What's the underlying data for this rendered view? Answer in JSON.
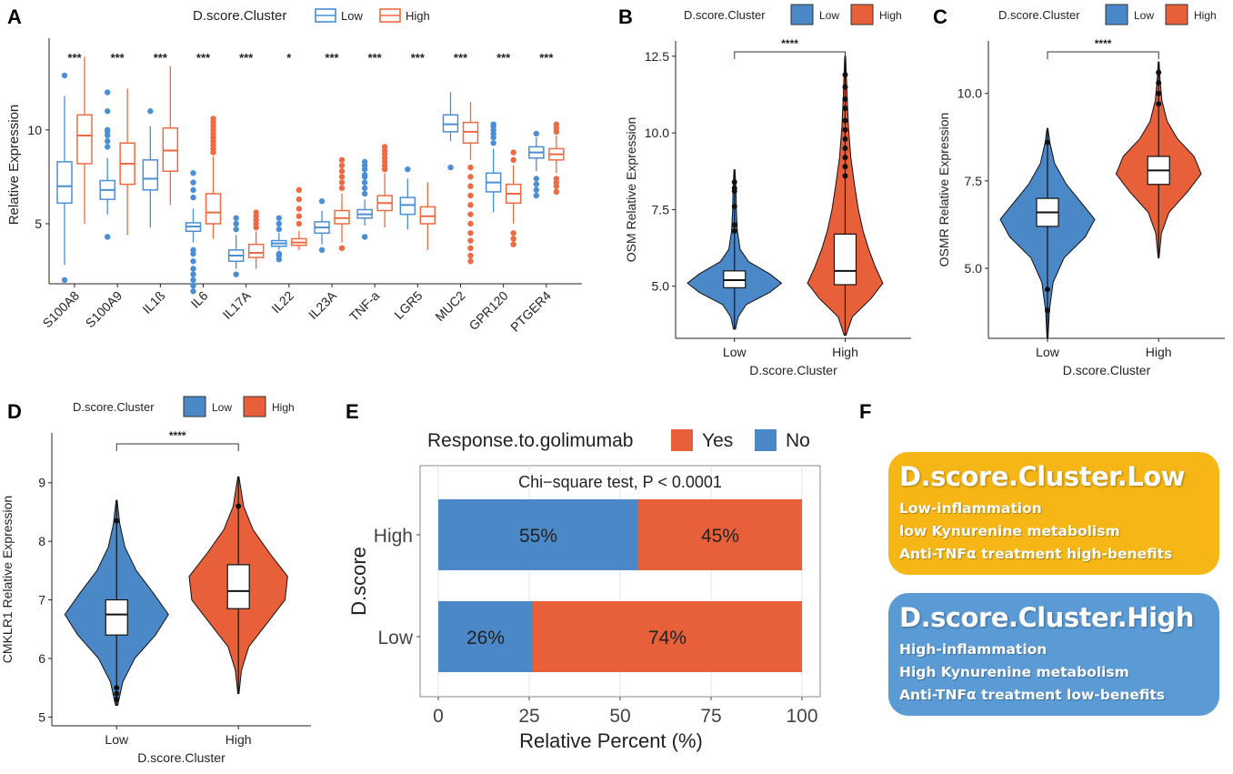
{
  "colors": {
    "low": "#4a8ed4",
    "high": "#ee6a42",
    "low_fill": "#4a88c8",
    "high_fill": "#e8603a",
    "box_low": "#f5b616",
    "box_high": "#5b9bd5"
  },
  "chart_data": [
    {
      "id": "A",
      "type": "boxplot",
      "panel_label": "A",
      "legend_title": "D.score.Cluster",
      "legend_items": [
        "Low",
        "High"
      ],
      "ylabel": "Relative Expression",
      "yticks": [
        5,
        10
      ],
      "ylim": [
        1.8,
        14.5
      ],
      "categories": [
        "S100A8",
        "S100A9",
        "IL1ß",
        "IL6",
        "IL17A",
        "IL22",
        "IL23A",
        "TNF-a",
        "LGR5",
        "MUC2",
        "GPR120",
        "PTGER4"
      ],
      "significance": [
        "***",
        "***",
        "***",
        "***",
        "***",
        "*",
        "***",
        "***",
        "***",
        "***",
        "***",
        "***"
      ],
      "series": [
        {
          "name": "Low",
          "boxes": [
            {
              "min": 2.8,
              "q1": 6.1,
              "med": 7.0,
              "q3": 8.3,
              "max": 11.8,
              "out": [
                2.0,
                12.9
              ]
            },
            {
              "min": 5.5,
              "q1": 6.3,
              "med": 6.8,
              "q3": 7.3,
              "max": 8.5,
              "out": [
                4.3,
                9.1,
                9.4,
                9.7,
                9.9,
                10.0,
                11.0,
                12.0
              ]
            },
            {
              "min": 4.8,
              "q1": 6.8,
              "med": 7.4,
              "q3": 8.4,
              "max": 10.2,
              "out": [
                11.0
              ]
            },
            {
              "min": 4.0,
              "q1": 4.6,
              "med": 4.85,
              "q3": 5.05,
              "max": 5.8,
              "out": [
                1.4,
                1.7,
                2.0,
                2.3,
                2.6,
                3.0,
                3.4,
                3.6,
                6.4,
                6.8,
                7.2,
                7.7
              ]
            },
            {
              "min": 2.6,
              "q1": 3.0,
              "med": 3.3,
              "q3": 3.6,
              "max": 4.4,
              "out": [
                2.3,
                4.7,
                5.0,
                5.3
              ]
            },
            {
              "min": 3.6,
              "q1": 3.8,
              "med": 3.95,
              "q3": 4.1,
              "max": 4.5,
              "out": [
                3.1,
                3.3,
                3.4,
                4.7,
                5.0,
                5.3
              ]
            },
            {
              "min": 3.9,
              "q1": 4.5,
              "med": 4.8,
              "q3": 5.1,
              "max": 5.7,
              "out": [
                3.6,
                6.2
              ]
            },
            {
              "min": 4.9,
              "q1": 5.3,
              "med": 5.5,
              "q3": 5.75,
              "max": 6.3,
              "out": [
                4.3,
                6.6,
                6.9,
                7.2,
                7.5,
                7.6,
                7.9,
                8.1,
                8.3
              ]
            },
            {
              "min": 4.7,
              "q1": 5.5,
              "med": 6.0,
              "q3": 6.4,
              "max": 7.4,
              "out": [
                7.9
              ]
            },
            {
              "min": 9.4,
              "q1": 9.9,
              "med": 10.3,
              "q3": 10.8,
              "max": 12.0,
              "out": [
                8.0
              ]
            },
            {
              "min": 5.6,
              "q1": 6.7,
              "med": 7.2,
              "q3": 7.7,
              "max": 9.0,
              "out": [
                9.3,
                9.6,
                9.8,
                10.0,
                10.2,
                10.3
              ]
            },
            {
              "min": 7.8,
              "q1": 8.5,
              "med": 8.8,
              "q3": 9.1,
              "max": 9.6,
              "out": [
                6.5,
                6.8,
                7.1,
                7.4,
                9.8
              ]
            }
          ]
        },
        {
          "name": "High",
          "boxes": [
            {
              "min": 5.0,
              "q1": 8.2,
              "med": 9.7,
              "q3": 10.8,
              "max": 13.9,
              "out": []
            },
            {
              "min": 4.4,
              "q1": 7.1,
              "med": 8.2,
              "q3": 9.3,
              "max": 12.2,
              "out": []
            },
            {
              "min": 6.0,
              "q1": 7.8,
              "med": 8.9,
              "q3": 10.1,
              "max": 13.4,
              "out": []
            },
            {
              "min": 4.2,
              "q1": 5.0,
              "med": 5.6,
              "q3": 6.6,
              "max": 8.6,
              "out": [
                8.8,
                9.0,
                9.2,
                9.4,
                9.6,
                9.8,
                10.0,
                10.2,
                10.4,
                10.6
              ]
            },
            {
              "min": 2.6,
              "q1": 3.2,
              "med": 3.45,
              "q3": 3.9,
              "max": 4.6,
              "out": [
                4.8,
                5.0,
                5.2,
                5.4,
                5.6
              ]
            },
            {
              "min": 3.6,
              "q1": 3.85,
              "med": 4.0,
              "q3": 4.2,
              "max": 4.6,
              "out": [
                5.0,
                5.4,
                5.8,
                6.3,
                6.8
              ]
            },
            {
              "min": 4.0,
              "q1": 5.0,
              "med": 5.3,
              "q3": 5.7,
              "max": 6.6,
              "out": [
                3.7,
                6.9,
                7.2,
                7.5,
                7.8,
                8.1,
                8.4
              ]
            },
            {
              "min": 4.8,
              "q1": 5.7,
              "med": 6.1,
              "q3": 6.5,
              "max": 7.7,
              "out": [
                7.9,
                8.1,
                8.3,
                8.5,
                8.7,
                8.9,
                9.1
              ]
            },
            {
              "min": 3.6,
              "q1": 5.0,
              "med": 5.4,
              "q3": 5.9,
              "max": 7.2,
              "out": []
            },
            {
              "min": 8.4,
              "q1": 9.3,
              "med": 9.9,
              "q3": 10.4,
              "max": 11.5,
              "out": [
                3.0,
                3.3,
                3.7,
                4.1,
                4.5,
                5.0,
                5.5,
                6.0,
                6.5,
                7.0,
                7.5,
                8.0
              ]
            },
            {
              "min": 5.0,
              "q1": 6.1,
              "med": 6.6,
              "q3": 7.1,
              "max": 8.1,
              "out": [
                3.9,
                4.2,
                4.5,
                8.4,
                8.8
              ]
            },
            {
              "min": 7.7,
              "q1": 8.4,
              "med": 8.7,
              "q3": 9.0,
              "max": 9.7,
              "out": [
                6.7,
                7.0,
                7.2,
                7.4,
                9.9,
                10.1,
                10.3
              ]
            }
          ]
        }
      ]
    },
    {
      "id": "B",
      "type": "violin",
      "panel_label": "B",
      "legend_title": "D.score.Cluster",
      "legend_items": [
        "Low",
        "High"
      ],
      "ylabel": "OSM Relative Expression",
      "xlabel": "D.score.Cluster",
      "categories": [
        "Low",
        "High"
      ],
      "yticks": [
        5.0,
        7.5,
        10.0,
        12.5
      ],
      "ytick_labels": [
        "5.0",
        "7.5",
        "10.0",
        "12.5"
      ],
      "ylim": [
        3.3,
        13.0
      ],
      "significance": "****",
      "groups": [
        {
          "name": "Low",
          "min": 4.3,
          "q1": 4.95,
          "med": 5.2,
          "q3": 5.5,
          "max": 6.3,
          "vmin": 3.6,
          "vmax": 8.8,
          "out": [
            6.8,
            7.0,
            7.6,
            8.1,
            8.2,
            8.4
          ],
          "density": [
            [
              3.6,
              0.02
            ],
            [
              4.0,
              0.08
            ],
            [
              4.4,
              0.25
            ],
            [
              4.8,
              0.75
            ],
            [
              5.1,
              1.0
            ],
            [
              5.4,
              0.75
            ],
            [
              5.8,
              0.3
            ],
            [
              6.2,
              0.12
            ],
            [
              6.8,
              0.06
            ],
            [
              7.5,
              0.04
            ],
            [
              8.2,
              0.03
            ],
            [
              8.8,
              0.01
            ]
          ]
        },
        {
          "name": "High",
          "min": 4.3,
          "q1": 5.05,
          "med": 5.5,
          "q3": 6.7,
          "max": 8.3,
          "vmin": 3.4,
          "vmax": 12.5,
          "out": [
            8.6,
            8.9,
            9.2,
            9.5,
            9.8,
            10.1,
            10.4,
            10.8,
            11.1,
            11.5,
            11.9
          ],
          "density": [
            [
              3.4,
              0.02
            ],
            [
              4.0,
              0.15
            ],
            [
              4.6,
              0.55
            ],
            [
              5.1,
              0.8
            ],
            [
              5.6,
              0.65
            ],
            [
              6.2,
              0.5
            ],
            [
              6.8,
              0.38
            ],
            [
              7.5,
              0.28
            ],
            [
              8.3,
              0.2
            ],
            [
              9.2,
              0.12
            ],
            [
              10.2,
              0.07
            ],
            [
              11.2,
              0.04
            ],
            [
              12.5,
              0.01
            ]
          ]
        }
      ]
    },
    {
      "id": "C",
      "type": "violin",
      "panel_label": "C",
      "legend_title": "D.score.Cluster",
      "legend_items": [
        "Low",
        "High"
      ],
      "ylabel": "OSMR Relative Expression",
      "xlabel": "D.score.Cluster",
      "categories": [
        "Low",
        "High"
      ],
      "yticks": [
        5.0,
        7.5,
        10.0
      ],
      "ytick_labels": [
        "5.0",
        "7.5",
        "10.0"
      ],
      "ylim": [
        3.0,
        11.5
      ],
      "significance": "****",
      "groups": [
        {
          "name": "Low",
          "min": 4.9,
          "q1": 6.2,
          "med": 6.6,
          "q3": 7.0,
          "max": 8.2,
          "vmin": 3.0,
          "vmax": 9.0,
          "out": [
            3.8,
            4.4,
            8.6
          ],
          "density": [
            [
              3.0,
              0.01
            ],
            [
              3.8,
              0.04
            ],
            [
              4.6,
              0.12
            ],
            [
              5.3,
              0.35
            ],
            [
              5.9,
              0.8
            ],
            [
              6.4,
              1.0
            ],
            [
              6.9,
              0.7
            ],
            [
              7.4,
              0.4
            ],
            [
              8.0,
              0.15
            ],
            [
              8.6,
              0.05
            ],
            [
              9.0,
              0.01
            ]
          ]
        },
        {
          "name": "High",
          "min": 6.2,
          "q1": 7.4,
          "med": 7.8,
          "q3": 8.2,
          "max": 9.4,
          "vmin": 5.3,
          "vmax": 10.9,
          "out": [
            9.7,
            10.0,
            10.3,
            10.6
          ],
          "density": [
            [
              5.3,
              0.01
            ],
            [
              6.0,
              0.06
            ],
            [
              6.6,
              0.22
            ],
            [
              7.2,
              0.62
            ],
            [
              7.7,
              0.9
            ],
            [
              8.2,
              0.75
            ],
            [
              8.7,
              0.4
            ],
            [
              9.2,
              0.18
            ],
            [
              9.8,
              0.07
            ],
            [
              10.4,
              0.03
            ],
            [
              10.9,
              0.01
            ]
          ]
        }
      ]
    },
    {
      "id": "D",
      "type": "violin",
      "panel_label": "D",
      "legend_title": "D.score.Cluster",
      "legend_items": [
        "Low",
        "High"
      ],
      "ylabel": "CMKLR1 Relative Expression",
      "xlabel": "D.score.Cluster",
      "categories": [
        "Low",
        "High"
      ],
      "yticks": [
        5,
        6,
        7,
        8,
        9
      ],
      "ytick_labels": [
        "5",
        "6",
        "7",
        "8",
        "9"
      ],
      "ylim": [
        4.85,
        9.85
      ],
      "significance": "****",
      "groups": [
        {
          "name": "Low",
          "min": 5.6,
          "q1": 6.4,
          "med": 6.75,
          "q3": 7.0,
          "max": 7.9,
          "vmin": 5.2,
          "vmax": 8.7,
          "out": [
            5.3,
            5.4,
            5.5,
            8.35
          ],
          "density": [
            [
              5.2,
              0.02
            ],
            [
              5.6,
              0.12
            ],
            [
              6.0,
              0.35
            ],
            [
              6.4,
              0.75
            ],
            [
              6.75,
              1.0
            ],
            [
              7.1,
              0.72
            ],
            [
              7.5,
              0.38
            ],
            [
              7.9,
              0.16
            ],
            [
              8.3,
              0.06
            ],
            [
              8.7,
              0.01
            ]
          ]
        },
        {
          "name": "High",
          "min": 6.0,
          "q1": 6.85,
          "med": 7.15,
          "q3": 7.6,
          "max": 8.5,
          "vmin": 5.4,
          "vmax": 9.1,
          "out": [
            8.6
          ],
          "density": [
            [
              5.4,
              0.01
            ],
            [
              5.8,
              0.06
            ],
            [
              6.2,
              0.2
            ],
            [
              6.6,
              0.55
            ],
            [
              7.0,
              0.9
            ],
            [
              7.4,
              0.95
            ],
            [
              7.8,
              0.6
            ],
            [
              8.2,
              0.28
            ],
            [
              8.6,
              0.1
            ],
            [
              9.1,
              0.01
            ]
          ]
        }
      ]
    },
    {
      "id": "E",
      "type": "stacked-bar",
      "panel_label": "E",
      "legend_title": "Response.to.golimumab",
      "legend_items": [
        "Yes",
        "No"
      ],
      "subtitle": "Chi−square test, P < 0.0001",
      "ylabel": "D.score",
      "xlabel": "Relative Percent (%)",
      "categories": [
        "High",
        "Low"
      ],
      "series": [
        {
          "name": "No",
          "values": [
            55,
            26
          ],
          "labels": [
            "55%",
            "26%"
          ]
        },
        {
          "name": "Yes",
          "values": [
            45,
            74
          ],
          "labels": [
            "45%",
            "74%"
          ]
        }
      ],
      "xticks": [
        0,
        25,
        50,
        75,
        100
      ],
      "xlim": [
        0,
        100
      ]
    }
  ],
  "panel_f": {
    "label": "F",
    "boxes": [
      {
        "title": "D.score.Cluster.Low",
        "lines": [
          "Low-inflammation",
          "low Kynurenine metabolism",
          "Anti-TNFα treatment high-benefits"
        ]
      },
      {
        "title": "D.score.Cluster.High",
        "lines": [
          "High-inflammation",
          "High Kynurenine metabolism",
          "Anti-TNFα treatment low-benefits"
        ]
      }
    ]
  }
}
